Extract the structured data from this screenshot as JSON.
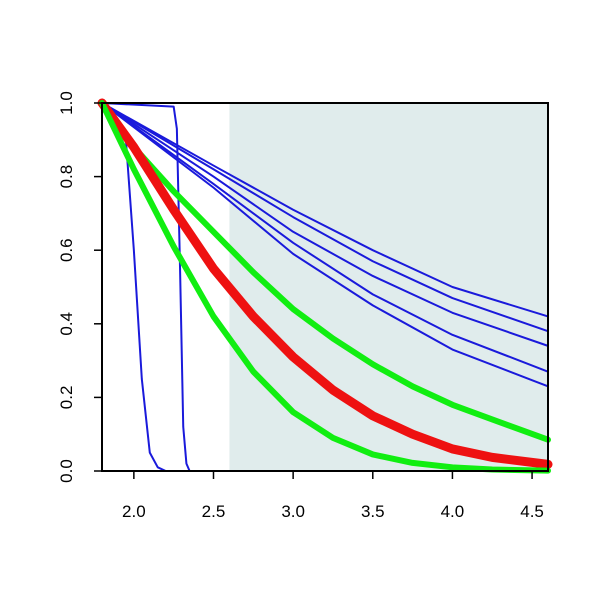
{
  "chart_data": {
    "type": "line",
    "title": "",
    "xlabel": "",
    "ylabel": "",
    "xlim": [
      1.8,
      4.6
    ],
    "ylim": [
      0.0,
      1.0
    ],
    "x_ticks": [
      2.0,
      2.5,
      3.0,
      3.5,
      4.0,
      4.5
    ],
    "y_ticks": [
      0.0,
      0.2,
      0.4,
      0.6,
      0.8,
      1.0
    ],
    "x_tick_labels": [
      "2.0",
      "2.5",
      "3.0",
      "3.5",
      "4.0",
      "4.5"
    ],
    "y_tick_labels": [
      "0.0",
      "0.2",
      "0.4",
      "0.6",
      "0.8",
      "1.0"
    ],
    "grid": false,
    "shaded_region": {
      "x": [
        2.6,
        4.6
      ],
      "color": "#e0ecec"
    },
    "colors": {
      "blue": "#1a1adb",
      "green": "#11ee11",
      "red": "#ee1111"
    },
    "series": [
      {
        "color": "blue",
        "width": 2,
        "x": [
          1.8,
          1.95,
          2.0,
          2.05,
          2.1,
          2.15,
          2.2,
          4.6
        ],
        "y": [
          1.0,
          0.9,
          0.6,
          0.25,
          0.05,
          0.01,
          0.0,
          0.0
        ]
      },
      {
        "color": "blue",
        "width": 2,
        "x": [
          1.8,
          2.25,
          2.27,
          2.29,
          2.31,
          2.33,
          2.35,
          4.6
        ],
        "y": [
          1.0,
          0.99,
          0.93,
          0.55,
          0.12,
          0.02,
          0.0,
          0.0
        ]
      },
      {
        "color": "blue",
        "width": 2,
        "x": [
          1.8,
          2.5,
          3.0,
          3.5,
          4.0,
          4.6
        ],
        "y": [
          1.0,
          0.83,
          0.71,
          0.6,
          0.5,
          0.42
        ]
      },
      {
        "color": "blue",
        "width": 2,
        "x": [
          1.8,
          2.5,
          3.0,
          3.5,
          4.0,
          4.6
        ],
        "y": [
          1.0,
          0.82,
          0.69,
          0.57,
          0.47,
          0.38
        ]
      },
      {
        "color": "blue",
        "width": 2,
        "x": [
          1.8,
          2.5,
          3.0,
          3.5,
          4.0,
          4.6
        ],
        "y": [
          1.0,
          0.8,
          0.65,
          0.53,
          0.43,
          0.34
        ]
      },
      {
        "color": "blue",
        "width": 2,
        "x": [
          1.8,
          2.5,
          3.0,
          3.5,
          4.0,
          4.6
        ],
        "y": [
          1.0,
          0.78,
          0.62,
          0.48,
          0.37,
          0.27
        ]
      },
      {
        "color": "blue",
        "width": 2,
        "x": [
          1.8,
          2.5,
          3.0,
          3.5,
          4.0,
          4.6
        ],
        "y": [
          1.0,
          0.77,
          0.59,
          0.45,
          0.33,
          0.23
        ]
      },
      {
        "color": "green",
        "width": 6,
        "x": [
          1.8,
          2.0,
          2.25,
          2.5,
          2.75,
          3.0,
          3.25,
          3.5,
          3.75,
          4.0,
          4.25,
          4.6
        ],
        "y": [
          1.0,
          0.88,
          0.76,
          0.65,
          0.54,
          0.44,
          0.36,
          0.29,
          0.23,
          0.18,
          0.14,
          0.085
        ]
      },
      {
        "color": "red",
        "width": 9,
        "x": [
          1.8,
          2.0,
          2.25,
          2.5,
          2.75,
          3.0,
          3.25,
          3.5,
          3.75,
          4.0,
          4.25,
          4.6
        ],
        "y": [
          1.0,
          0.88,
          0.71,
          0.55,
          0.42,
          0.31,
          0.22,
          0.15,
          0.1,
          0.06,
          0.037,
          0.018
        ]
      },
      {
        "color": "green",
        "width": 6,
        "x": [
          1.8,
          2.0,
          2.25,
          2.5,
          2.75,
          3.0,
          3.25,
          3.5,
          3.75,
          4.0,
          4.25,
          4.6
        ],
        "y": [
          1.0,
          0.82,
          0.61,
          0.42,
          0.27,
          0.16,
          0.09,
          0.045,
          0.022,
          0.01,
          0.004,
          0.001
        ]
      }
    ]
  }
}
